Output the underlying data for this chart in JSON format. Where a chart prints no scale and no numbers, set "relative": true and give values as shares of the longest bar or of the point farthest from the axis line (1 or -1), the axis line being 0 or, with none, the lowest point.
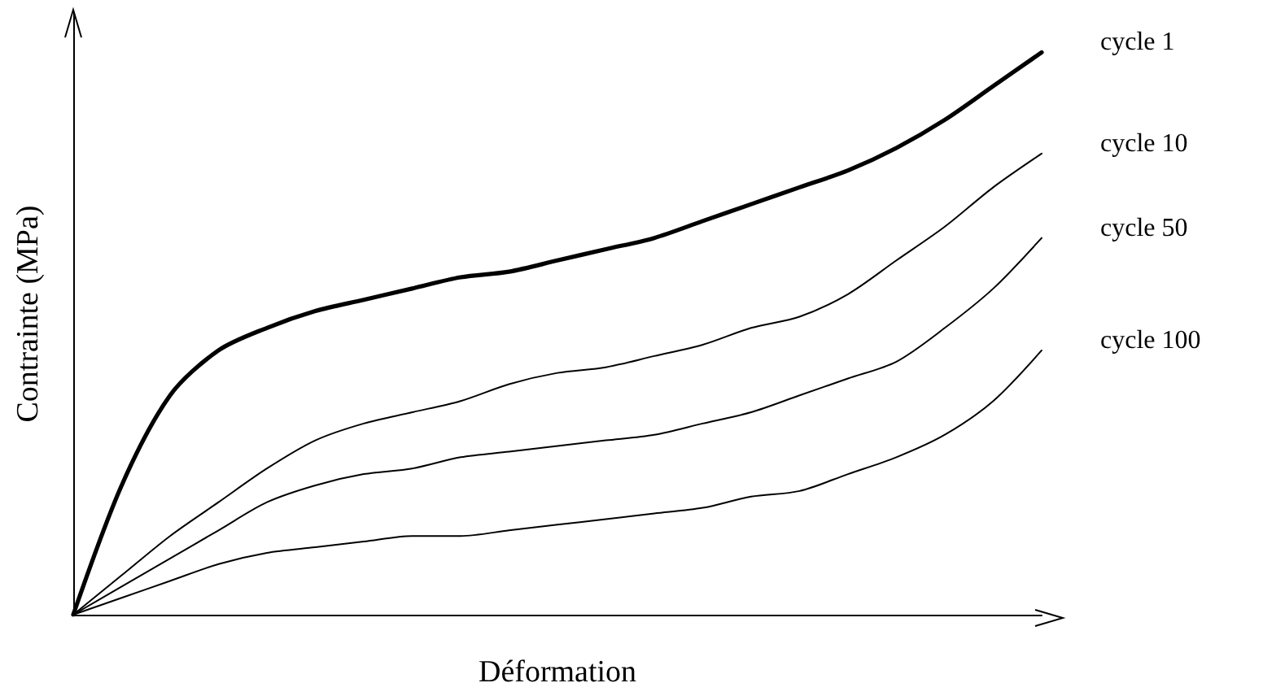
{
  "chart_data": {
    "type": "line",
    "relative": true,
    "xlabel": "Déformation",
    "ylabel": "Contrainte (MPa)",
    "categories": [
      null,
      null,
      null,
      null,
      null,
      null,
      null,
      null,
      null,
      null,
      null,
      null,
      null,
      null,
      null,
      null,
      null,
      null,
      null,
      null,
      null
    ],
    "series": [
      {
        "name": "cycle 1",
        "color": "#000000",
        "values": [
          0,
          0.23,
          0.39,
          0.47,
          0.51,
          0.54,
          0.56,
          0.58,
          0.6,
          0.61,
          0.63,
          0.65,
          0.67,
          0.7,
          0.73,
          0.76,
          0.79,
          0.83,
          0.88,
          0.94,
          1
        ]
      },
      {
        "name": "cycle 10",
        "color": "#000000",
        "values": [
          0,
          0.07,
          0.14,
          0.2,
          0.26,
          0.31,
          0.34,
          0.36,
          0.38,
          0.41,
          0.43,
          0.44,
          0.46,
          0.48,
          0.51,
          0.53,
          0.57,
          0.63,
          0.69,
          0.76,
          0.82
        ]
      },
      {
        "name": "cycle 50",
        "color": "#000000",
        "values": [
          0,
          0.05,
          0.1,
          0.15,
          0.2,
          0.23,
          0.25,
          0.26,
          0.28,
          0.29,
          0.3,
          0.31,
          0.32,
          0.34,
          0.36,
          0.39,
          0.42,
          0.45,
          0.51,
          0.58,
          0.67
        ]
      },
      {
        "name": "cycle 100",
        "color": "#000000",
        "values": [
          0,
          0.03,
          0.06,
          0.09,
          0.11,
          0.12,
          0.13,
          0.14,
          0.14,
          0.15,
          0.16,
          0.17,
          0.18,
          0.19,
          0.21,
          0.22,
          0.25,
          0.28,
          0.32,
          0.38,
          0.47
        ]
      }
    ],
    "grid": false,
    "legend": false,
    "marker": "none",
    "line_style": "solid"
  }
}
